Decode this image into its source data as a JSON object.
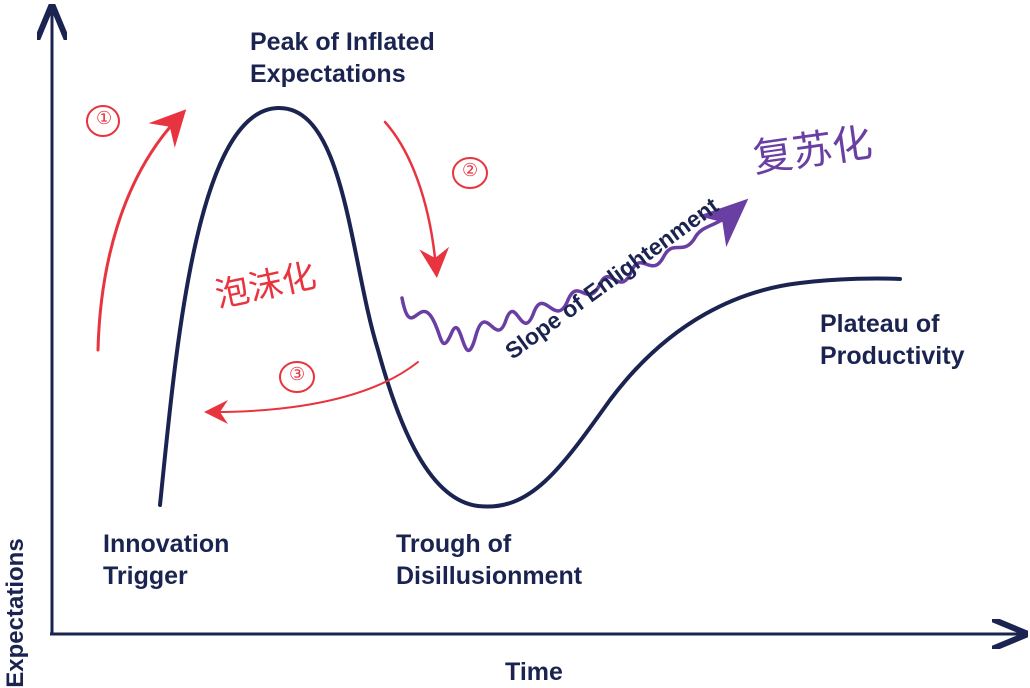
{
  "axes": {
    "y_label": "Expectations",
    "x_label": "Time"
  },
  "stages": {
    "peak": [
      "Peak of Inflated",
      "Expectations"
    ],
    "innovation": [
      "Innovation",
      "Trigger"
    ],
    "trough": [
      "Trough of",
      "Disillusionment"
    ],
    "slope": "Slope of Enlightenment",
    "plateau": [
      "Plateau of",
      "Productivity"
    ]
  },
  "annotations": {
    "marker_1": "①",
    "marker_2": "②",
    "marker_3": "③",
    "note_red": "泡沫化",
    "note_purple": "复苏化"
  },
  "colors": {
    "curve": "#1b2451",
    "annotation_red": "#e8343f",
    "annotation_purple": "#6a3fa3"
  }
}
